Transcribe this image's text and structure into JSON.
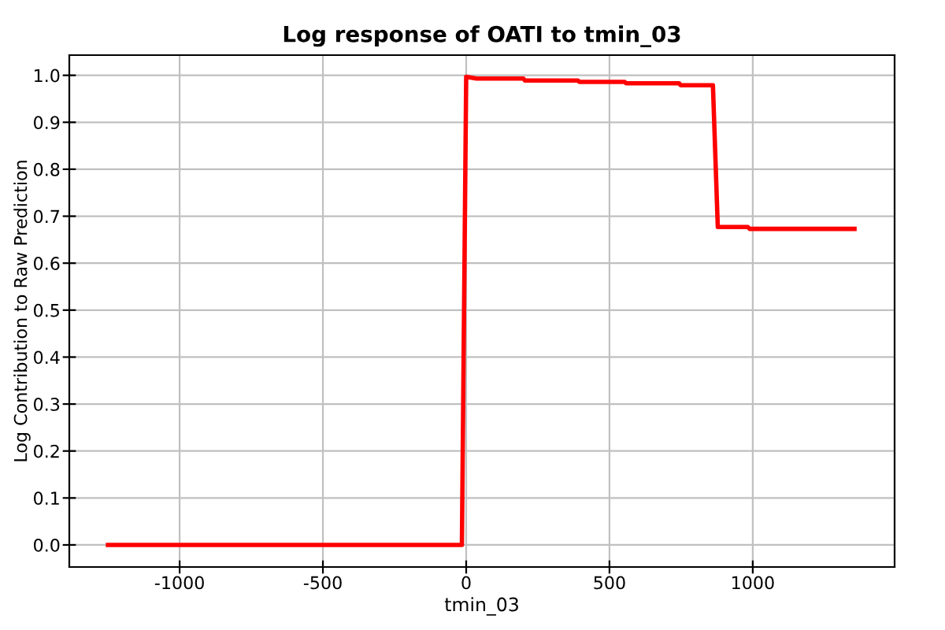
{
  "chart_data": {
    "type": "line",
    "title": "Log response of OATI to tmin_03",
    "xlabel": "tmin_03",
    "ylabel": "Log Contribution to Raw Prediction",
    "series": [
      {
        "color": "#ff0000",
        "x": [
          -1250,
          -15,
          0,
          36,
          200,
          205,
          390,
          395,
          553,
          558,
          743,
          748,
          861,
          878,
          983,
          989,
          1355
        ],
        "values": [
          0,
          0,
          0.997,
          0.993,
          0.993,
          0.989,
          0.989,
          0.986,
          0.986,
          0.983,
          0.983,
          0.979,
          0.979,
          0.677,
          0.677,
          0.673,
          0.673
        ]
      }
    ],
    "xlim": [
      -1385,
      1495
    ],
    "xticks": [
      -1000,
      -500,
      0,
      500,
      1000
    ],
    "ylim": [
      -0.047,
      1.043
    ],
    "yticks": [
      {
        "value": 0,
        "label": "0.0"
      },
      {
        "value": 0.1,
        "label": "0.1"
      },
      {
        "value": 0.2,
        "label": "0.2"
      },
      {
        "value": 0.3,
        "label": "0.3"
      },
      {
        "value": 0.4,
        "label": "0.4"
      },
      {
        "value": 0.5,
        "label": "0.5"
      },
      {
        "value": 0.6,
        "label": "0.6"
      },
      {
        "value": 0.7,
        "label": "0.7"
      },
      {
        "value": 0.8,
        "label": "0.8"
      },
      {
        "value": 0.9,
        "label": "0.9"
      },
      {
        "value": 1,
        "label": "1.0"
      }
    ],
    "grid": true,
    "legend": false,
    "marker": "none",
    "line_style": "solid"
  }
}
